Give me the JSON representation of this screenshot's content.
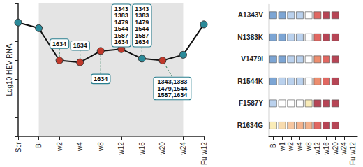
{
  "chart_data": [
    {
      "type": "line",
      "ylabel": "Log10 HEV RNA",
      "categories": [
        "Scr",
        "Bl",
        "w2",
        "w4",
        "w8",
        "w12",
        "w16",
        "w20",
        "w24",
        "Fu w12"
      ],
      "values": [
        6.0,
        5.7,
        4.0,
        3.9,
        4.5,
        4.6,
        4.1,
        4.0,
        4.3,
        5.9
      ],
      "color": "#111111",
      "colors": [
        "#2b8a99",
        "#2b8a99",
        "#c0392b",
        "#c0392b",
        "#c0392b",
        "#c0392b",
        "#2b8a99",
        "#c0392b",
        "#2b8a99",
        "#2b8a99"
      ],
      "marker": "circle",
      "ylim": [
        0,
        7
      ],
      "yticks": [
        0,
        1,
        2,
        3,
        4,
        5,
        6,
        7
      ],
      "tick_labels": "x",
      "annotations": [
        {
          "x": "w2",
          "text": [
            "1634"
          ]
        },
        {
          "x": "w4",
          "text": [
            "1634"
          ]
        },
        {
          "x": "w12",
          "text": [
            "1343",
            "1383",
            "1479",
            "1544",
            "1587",
            "1634"
          ]
        },
        {
          "x": "w16",
          "text": [
            "1343",
            "1383",
            "1479",
            "1544",
            "1587",
            "1634"
          ]
        },
        {
          "x": "w8",
          "text": [
            "1634"
          ]
        },
        {
          "x": "w20",
          "text": [
            "1343,1383",
            "1479,1544",
            "1587,1634"
          ]
        }
      ]
    },
    {
      "type": "heatmap",
      "rows": [
        "A1343V",
        "N1383K",
        "V1479I",
        "R1544K",
        "F1587Y",
        "R1634G"
      ],
      "columns": [
        "Bl",
        "w1",
        "w2",
        "w4",
        "w8",
        "w12",
        "w16",
        "w20",
        "w24",
        "Fu w12"
      ],
      "colors": [
        [
          "#5b8fc9",
          "#5b8fc9",
          "#a9c6e8",
          "#a9c6e8",
          "#ffffff",
          "#d9413a",
          "#a4162b",
          "#a4162b",
          null,
          null
        ],
        [
          "#5b8fc9",
          "#5b8fc9",
          "#a9c6e8",
          "#a9c6e8",
          "#ffffff",
          "#d9413a",
          "#a4162b",
          "#a4162b",
          null,
          null
        ],
        [
          "#5b8fc9",
          "#5b8fc9",
          "#a9c6e8",
          "#a9c6e8",
          "#ffffff",
          "#e8704a",
          "#d9413a",
          "#a4162b",
          null,
          null
        ],
        [
          "#5b8fc9",
          "#a9c6e8",
          "#a9c6e8",
          "#a9c6e8",
          "#ffffff",
          "#e8704a",
          "#d9413a",
          "#a4162b",
          null,
          null
        ],
        [
          "#a9c6e8",
          "#ffffff",
          "#ffffff",
          "#ffffff",
          "#f7e7a6",
          "#a4162b",
          "#a4162b",
          "#a4162b",
          null,
          null
        ],
        [
          "#f7e7a6",
          "#f5d29a",
          "#f2b888",
          "#f0a070",
          "#f0a070",
          "#d9413a",
          "#a4162b",
          "#a4162b",
          null,
          null
        ]
      ]
    }
  ]
}
